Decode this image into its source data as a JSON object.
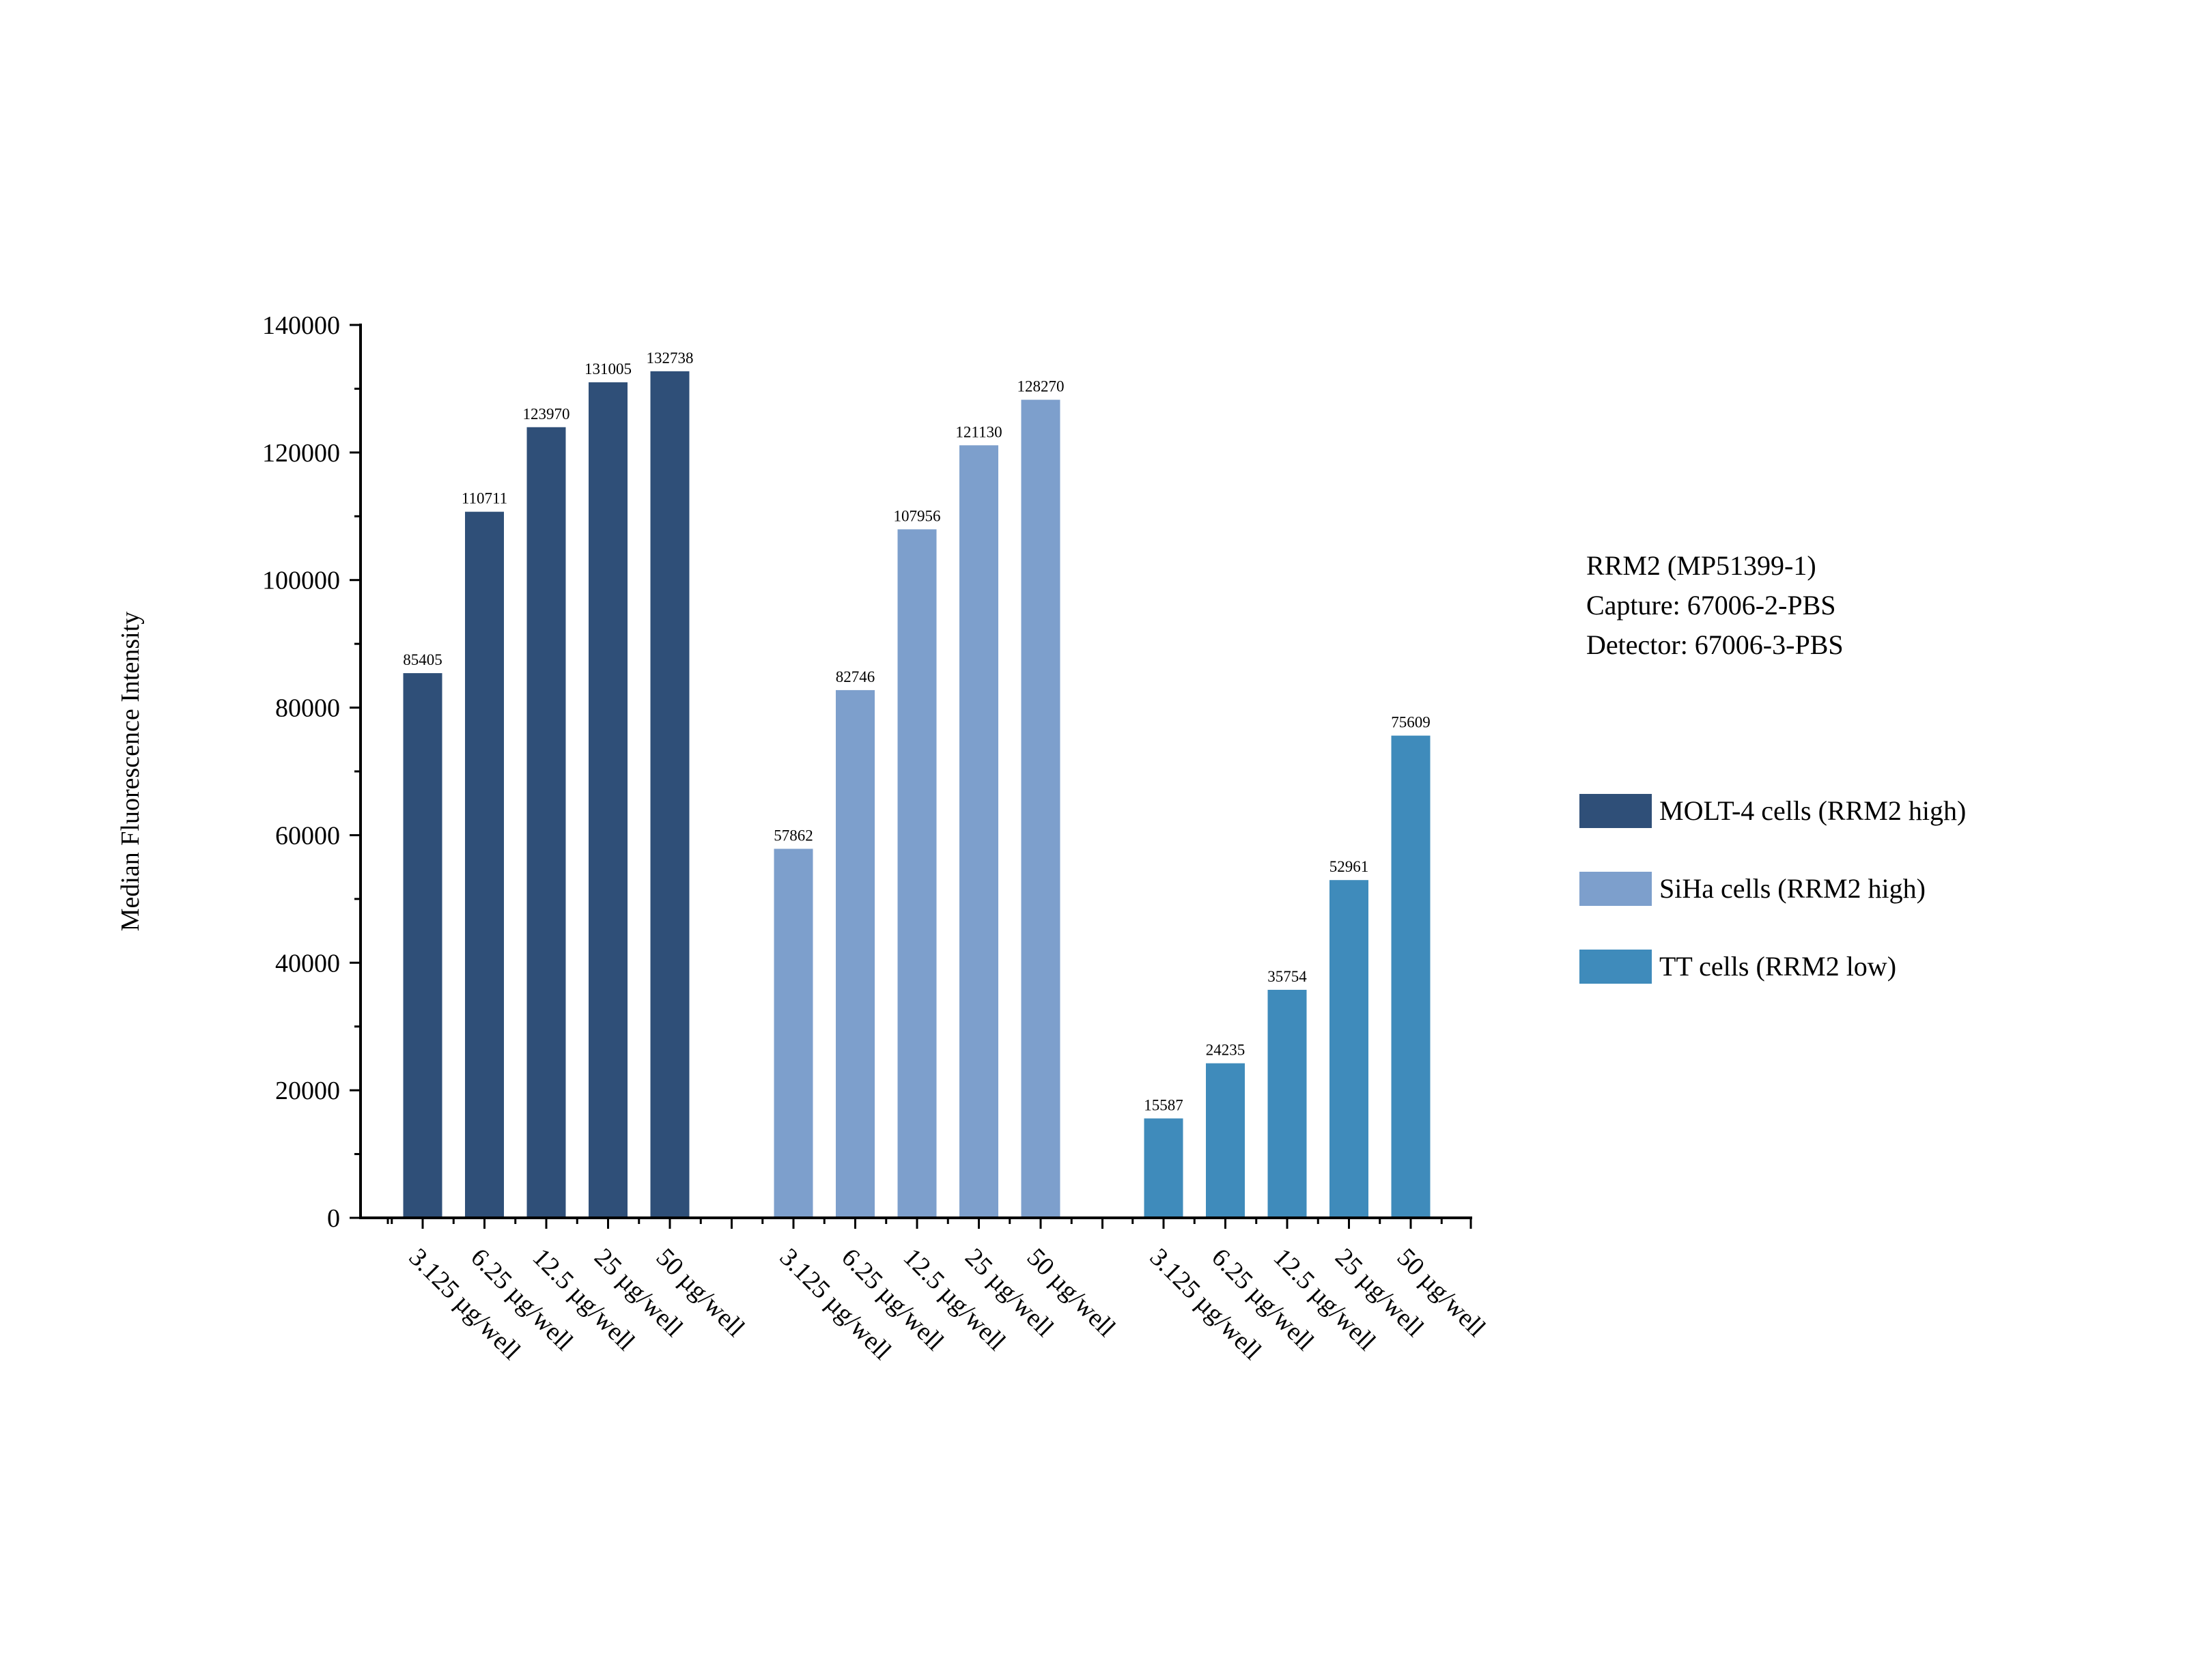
{
  "chart_data": {
    "type": "bar",
    "title": "",
    "ylabel": "Median Fluorescence Intensity",
    "xlabel": "",
    "ylim": [
      0,
      140000
    ],
    "y_ticks": [
      0,
      20000,
      40000,
      60000,
      80000,
      100000,
      120000,
      140000
    ],
    "grid": false,
    "legend_position": "right",
    "categories": [
      "3.125 µg/well",
      "6.25 µg/well",
      "12.5 µg/well",
      "25 µg/well",
      "50 µg/well"
    ],
    "series": [
      {
        "name": "MOLT-4 cells (RRM2 high)",
        "color": "#2f4f78",
        "values": [
          85405,
          110711,
          123970,
          131005,
          132738
        ]
      },
      {
        "name": "SiHa cells (RRM2 high)",
        "color": "#7d9fcc",
        "values": [
          57862,
          82746,
          107956,
          121130,
          128270
        ]
      },
      {
        "name": "TT cells (RRM2 low)",
        "color": "#3f8bbb",
        "values": [
          15587,
          24235,
          35754,
          52961,
          75609
        ]
      }
    ],
    "annotation": {
      "target": "RRM2 (MP51399-1)",
      "capture": "Capture: 67006-2-PBS",
      "detector": "Detector: 67006-3-PBS"
    }
  }
}
